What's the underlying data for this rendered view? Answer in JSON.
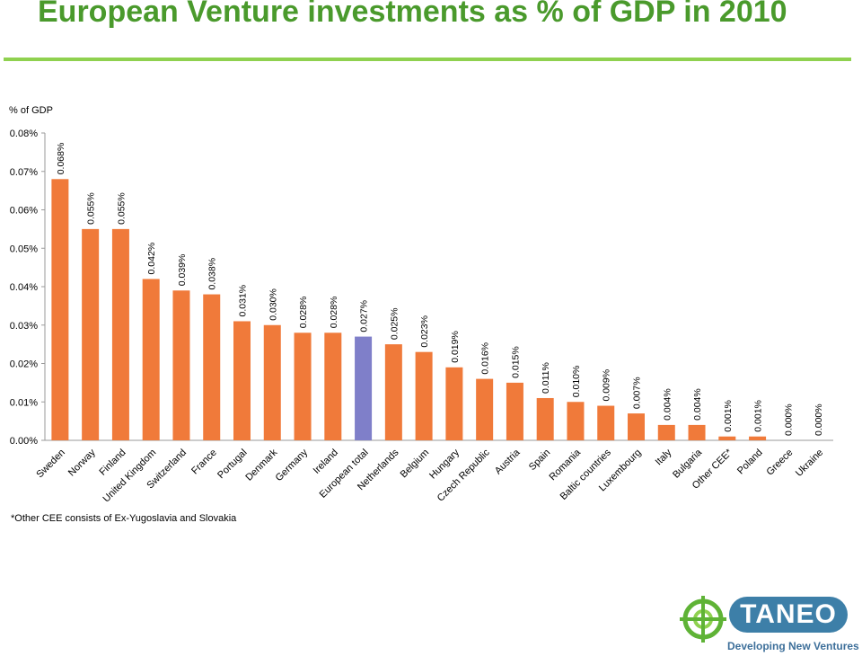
{
  "page": {
    "title": "European Venture investments as % of GDP in 2010",
    "footnote": "*Other CEE consists of Ex-Yugoslavia and Slovakia"
  },
  "logo": {
    "name": "TANEO",
    "tagline": "Developing New Ventures",
    "icon": "globe-target-icon"
  },
  "colors": {
    "title": "#4a9a2c",
    "title_rule": "#8fd14f",
    "bar": "#f07a3a",
    "highlight_bar": "#7f7fc9",
    "grid": "#cfcfcf",
    "logo_blue": "#3d7fa8"
  },
  "chart_data": {
    "type": "bar",
    "title": "",
    "ylabel": "% of GDP",
    "xlabel": "",
    "ylim": [
      0,
      0.08
    ],
    "yticks": [
      "0.00%",
      "0.01%",
      "0.02%",
      "0.03%",
      "0.04%",
      "0.05%",
      "0.06%",
      "0.07%",
      "0.08%"
    ],
    "grid": false,
    "categories": [
      "Sweden",
      "Norway",
      "Finland",
      "United Kingdom",
      "Switzerland",
      "France",
      "Portugal",
      "Denmark",
      "Germany",
      "Ireland",
      "European total",
      "Netherlands",
      "Belgium",
      "Hungary",
      "Czech Republic",
      "Austria",
      "Spain",
      "Romania",
      "Baltic countries",
      "Luxembourg",
      "Italy",
      "Bulgaria",
      "Other CEE*",
      "Poland",
      "Greece",
      "Ukraine"
    ],
    "values": [
      0.068,
      0.055,
      0.055,
      0.042,
      0.039,
      0.038,
      0.031,
      0.03,
      0.028,
      0.028,
      0.027,
      0.025,
      0.023,
      0.019,
      0.016,
      0.015,
      0.011,
      0.01,
      0.009,
      0.007,
      0.004,
      0.004,
      0.001,
      0.001,
      0.0,
      0.0
    ],
    "data_labels": [
      "0.068%",
      "0.055%",
      "0.055%",
      "0.042%",
      "0.039%",
      "0.038%",
      "0.031%",
      "0.030%",
      "0.028%",
      "0.028%",
      "0.027%",
      "0.025%",
      "0.023%",
      "0.019%",
      "0.016%",
      "0.015%",
      "0.011%",
      "0.010%",
      "0.009%",
      "0.007%",
      "0.004%",
      "0.004%",
      "0.001%",
      "0.001%",
      "0.000%",
      "0.000%"
    ],
    "highlight": [
      "European total"
    ]
  }
}
